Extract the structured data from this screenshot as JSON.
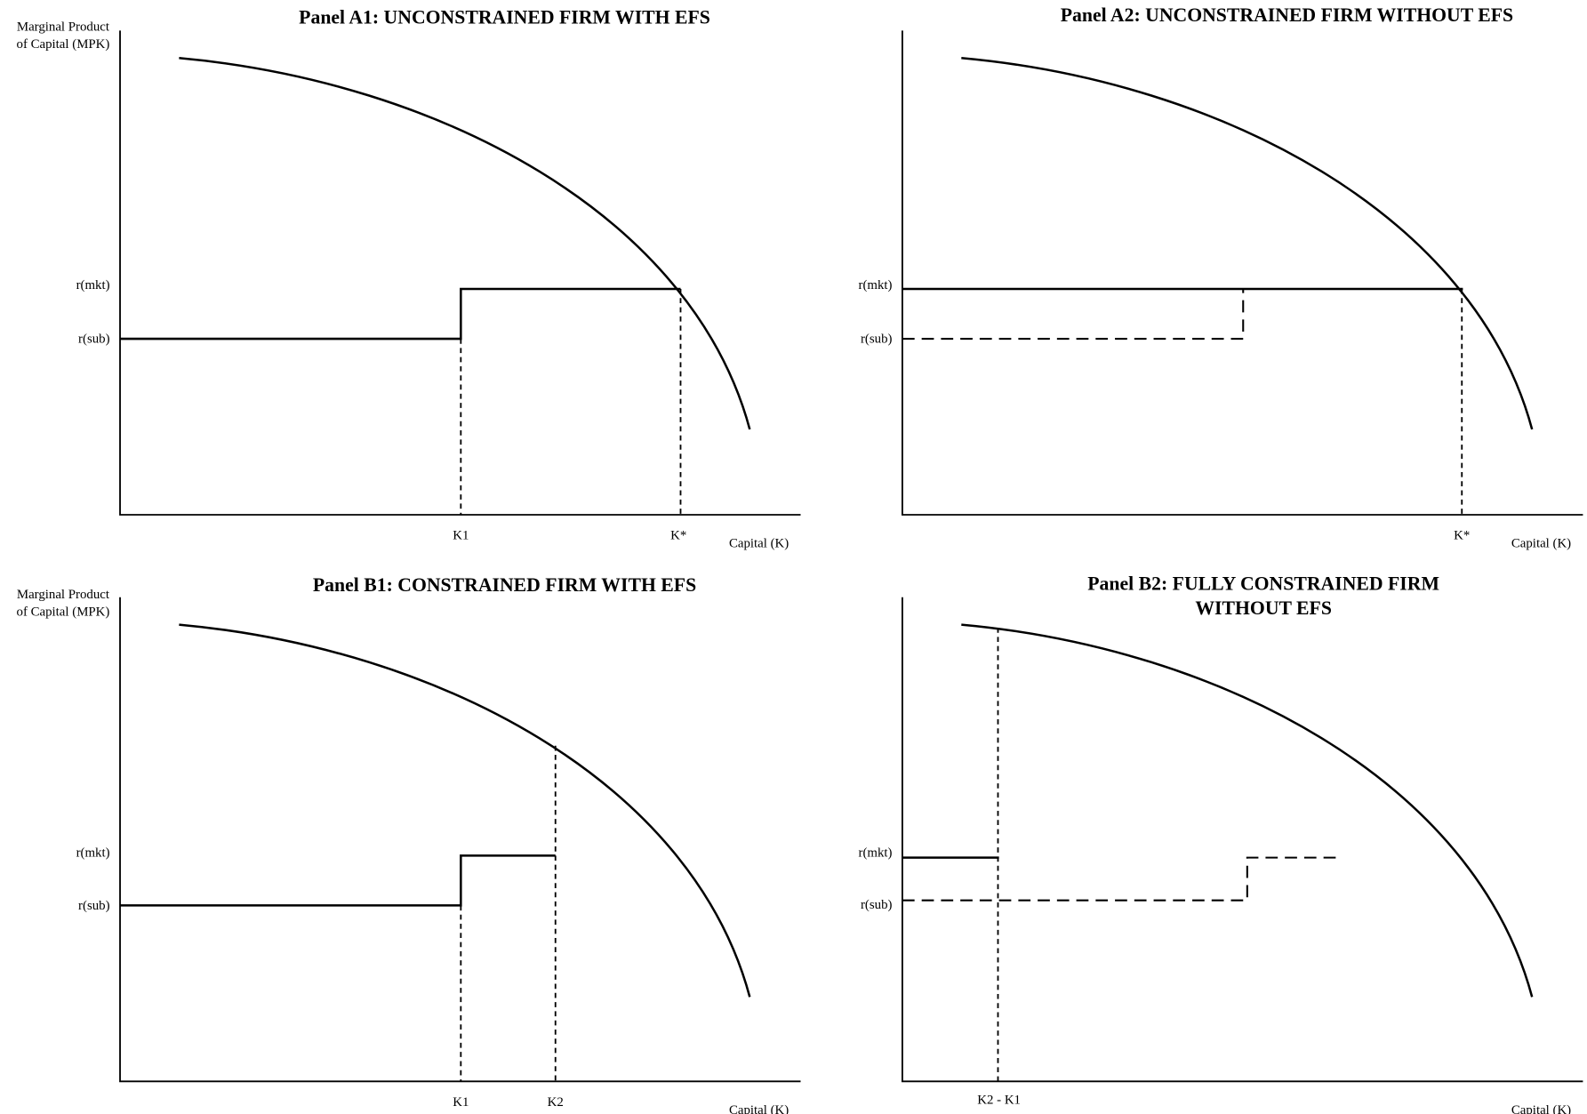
{
  "panels": [
    {
      "title": [
        "Panel A1: UNCONSTRAINED FIRM WITH EFS"
      ],
      "y_axis_label": [
        "Marginal Product",
        "of Capital (MPK)"
      ],
      "y_labels": [
        "r(mkt)",
        "r(sub)"
      ],
      "x_labels": [
        "K1",
        "K*"
      ],
      "x_axis_label": "Capital (K)"
    },
    {
      "title": [
        "Panel A2: UNCONSTRAINED FIRM WITHOUT EFS"
      ],
      "y_labels": [
        "r(mkt)",
        "r(sub)"
      ],
      "x_labels": [
        "K*"
      ],
      "x_axis_label": "Capital (K)"
    },
    {
      "title": [
        "Panel B1: CONSTRAINED FIRM WITH EFS"
      ],
      "y_axis_label": [
        "Marginal Product",
        "of Capital (MPK)"
      ],
      "y_labels": [
        "r(mkt)",
        "r(sub)"
      ],
      "x_labels": [
        "K1",
        "K2"
      ],
      "x_axis_label": "Capital (K)"
    },
    {
      "title": [
        "Panel B2: FULLY CONSTRAINED FIRM",
        "WITHOUT EFS"
      ],
      "y_labels": [
        "r(mkt)",
        "r(sub)"
      ],
      "x_labels": [
        "K2 - K1"
      ],
      "x_axis_label": "Capital (K)"
    }
  ]
}
